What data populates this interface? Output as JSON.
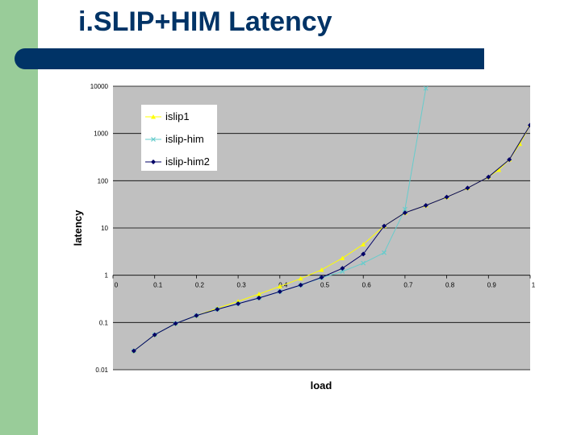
{
  "slide": {
    "title": "i.SLIP+HIM Latency"
  },
  "colors": {
    "left_band": "#99cc99",
    "title": "#003366",
    "title_bar": "#003366",
    "plot_background": "#c0c0c0"
  },
  "chart_data": {
    "type": "line",
    "xlabel": "load",
    "ylabel": "latency",
    "y_scale": "log",
    "xlim": [
      0,
      1
    ],
    "ylim": [
      0.01,
      10000
    ],
    "x_ticks": [
      "0",
      "0.1",
      "0.2",
      "0.3",
      "0.4",
      "0.5",
      "0.6",
      "0.7",
      "0.8",
      "0.9",
      "1"
    ],
    "y_ticks": [
      "10000",
      "1000",
      "100",
      "10",
      "1",
      "0.1",
      "0.01"
    ],
    "grid": "horizontal major lines",
    "legend_position": "top-left",
    "series": [
      {
        "name": "islip1",
        "color": "#ffff00",
        "marker": "triangle",
        "points": [
          [
            0.05,
            0.025
          ],
          [
            0.1,
            0.055
          ],
          [
            0.15,
            0.095
          ],
          [
            0.2,
            0.14
          ],
          [
            0.25,
            0.2
          ],
          [
            0.3,
            0.28
          ],
          [
            0.35,
            0.4
          ],
          [
            0.4,
            0.58
          ],
          [
            0.45,
            0.85
          ],
          [
            0.5,
            1.3
          ],
          [
            0.55,
            2.3
          ],
          [
            0.6,
            4.5
          ],
          [
            0.65,
            11
          ],
          [
            0.7,
            21
          ],
          [
            0.75,
            30
          ],
          [
            0.8,
            45
          ],
          [
            0.85,
            70
          ],
          [
            0.9,
            120
          ],
          [
            0.925,
            170
          ],
          [
            0.95,
            280
          ],
          [
            0.975,
            600
          ],
          [
            1.0,
            1500
          ]
        ]
      },
      {
        "name": "islip-him",
        "color": "#66cccc",
        "marker": "x",
        "points": [
          [
            0.05,
            0.025
          ],
          [
            0.1,
            0.055
          ],
          [
            0.15,
            0.095
          ],
          [
            0.2,
            0.14
          ],
          [
            0.25,
            0.19
          ],
          [
            0.3,
            0.25
          ],
          [
            0.35,
            0.33
          ],
          [
            0.4,
            0.45
          ],
          [
            0.45,
            0.62
          ],
          [
            0.5,
            0.88
          ],
          [
            0.55,
            1.2
          ],
          [
            0.6,
            1.8
          ],
          [
            0.65,
            3
          ],
          [
            0.7,
            25
          ],
          [
            0.75,
            9000
          ]
        ]
      },
      {
        "name": "islip-him2",
        "color": "#000066",
        "marker": "diamond",
        "points": [
          [
            0.05,
            0.025
          ],
          [
            0.1,
            0.055
          ],
          [
            0.15,
            0.095
          ],
          [
            0.2,
            0.14
          ],
          [
            0.25,
            0.19
          ],
          [
            0.3,
            0.25
          ],
          [
            0.35,
            0.33
          ],
          [
            0.4,
            0.45
          ],
          [
            0.45,
            0.62
          ],
          [
            0.5,
            0.9
          ],
          [
            0.55,
            1.4
          ],
          [
            0.6,
            2.8
          ],
          [
            0.65,
            11
          ],
          [
            0.7,
            21
          ],
          [
            0.75,
            30
          ],
          [
            0.8,
            45
          ],
          [
            0.85,
            70
          ],
          [
            0.9,
            120
          ],
          [
            0.95,
            280
          ],
          [
            1.0,
            1500
          ]
        ]
      }
    ]
  }
}
